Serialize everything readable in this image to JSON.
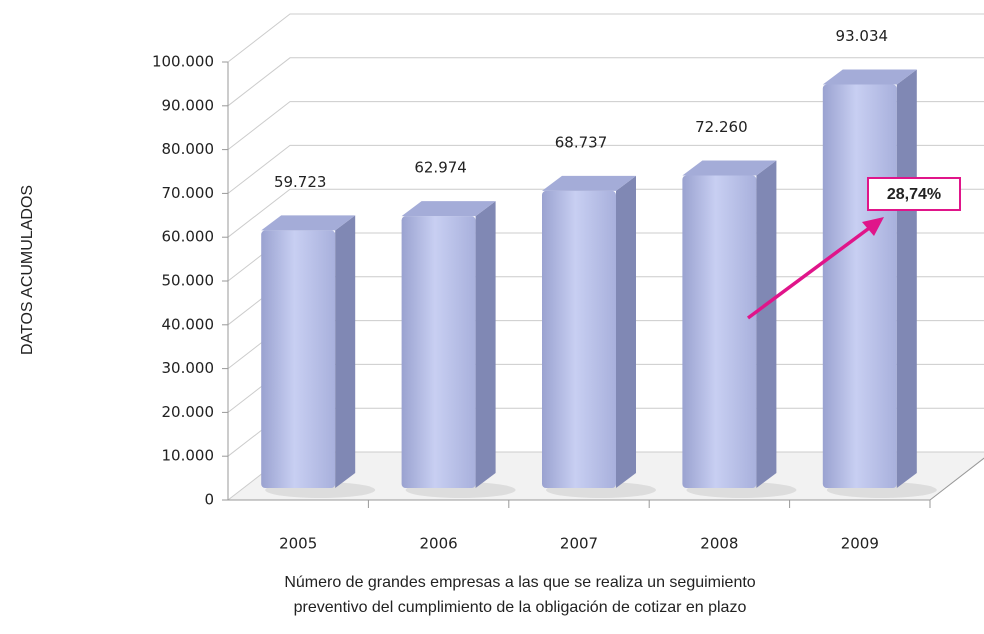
{
  "chart_data": {
    "type": "bar3d",
    "y_label": "DATOS ACUMULADOS",
    "x_label": [
      "Número de grandes empresas a las que se realiza un seguimiento",
      "preventivo del cumplimiento de la obligación de cotizar en plazo"
    ],
    "categories": [
      "2005",
      "2006",
      "2007",
      "2008",
      "2009"
    ],
    "values": [
      59723,
      62974,
      68737,
      72260,
      93034
    ],
    "value_labels": [
      "59.723",
      "62.974",
      "68.737",
      "72.260",
      "93.034"
    ],
    "color": "#b4bce6",
    "ylim": [
      0,
      100000
    ],
    "yticks": [
      0,
      {
        "value": 10000,
        "label": "10.000"
      },
      {
        "value": 20000,
        "label": "20.000"
      },
      {
        "value": 30000,
        "label": "30.000"
      },
      {
        "value": 40000,
        "label": "40.000"
      },
      {
        "value": 50000,
        "label": "50.000"
      },
      {
        "value": 60000,
        "label": "60.000"
      },
      {
        "value": 70000,
        "label": "70.000"
      },
      {
        "value": 80000,
        "label": "80.000"
      },
      {
        "value": 90000,
        "label": "90.000"
      },
      {
        "value": 100000,
        "label": "100.000"
      }
    ],
    "grid": true,
    "annotation": "28,74%"
  }
}
